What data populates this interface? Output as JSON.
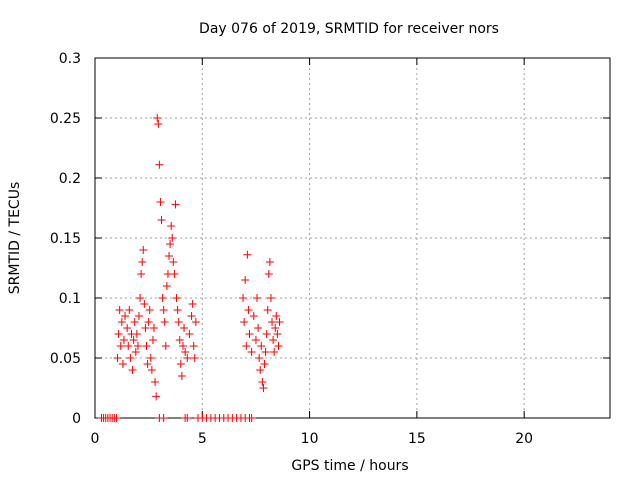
{
  "chart_data": {
    "type": "scatter",
    "title": "Day 076 of 2019, SRMTID for receiver nors",
    "xlabel": "GPS time / hours",
    "ylabel": "SRMTID / TECUs",
    "xlim": [
      0,
      24
    ],
    "ylim": [
      0,
      0.3
    ],
    "x_ticks": [
      0,
      5,
      10,
      15,
      20
    ],
    "x_tick_labels": [
      "0",
      "5",
      "10",
      "15",
      "20"
    ],
    "y_ticks": [
      0,
      0.05,
      0.1,
      0.15,
      0.2,
      0.25,
      0.3
    ],
    "y_tick_labels": [
      "0",
      "0.05",
      "0.1",
      "0.15",
      "0.2",
      "0.25",
      "0.3"
    ],
    "grid": true,
    "marker": "+",
    "series": [
      {
        "color": "#ff0000",
        "points": [
          [
            0.3,
            0
          ],
          [
            0.4,
            0
          ],
          [
            0.5,
            0
          ],
          [
            0.6,
            0
          ],
          [
            0.7,
            0
          ],
          [
            0.8,
            0
          ],
          [
            0.9,
            0
          ],
          [
            1.0,
            0
          ],
          [
            1.05,
            0.05
          ],
          [
            1.1,
            0.07
          ],
          [
            1.15,
            0.09
          ],
          [
            1.2,
            0.06
          ],
          [
            1.25,
            0.08
          ],
          [
            1.3,
            0.045
          ],
          [
            1.35,
            0.065
          ],
          [
            1.4,
            0.085
          ],
          [
            1.5,
            0.075
          ],
          [
            1.55,
            0.06
          ],
          [
            1.6,
            0.09
          ],
          [
            1.65,
            0.05
          ],
          [
            1.7,
            0.07
          ],
          [
            1.75,
            0.04
          ],
          [
            1.8,
            0.065
          ],
          [
            1.85,
            0.08
          ],
          [
            1.9,
            0.055
          ],
          [
            1.95,
            0.07
          ],
          [
            2.0,
            0.06
          ],
          [
            2.05,
            0.085
          ],
          [
            2.1,
            0.1
          ],
          [
            2.15,
            0.12
          ],
          [
            2.2,
            0.13
          ],
          [
            2.25,
            0.14
          ],
          [
            2.3,
            0.095
          ],
          [
            2.35,
            0.075
          ],
          [
            2.4,
            0.06
          ],
          [
            2.45,
            0.045
          ],
          [
            2.5,
            0.08
          ],
          [
            2.55,
            0.09
          ],
          [
            2.6,
            0.05
          ],
          [
            2.65,
            0.04
          ],
          [
            2.7,
            0.065
          ],
          [
            2.75,
            0.075
          ],
          [
            2.8,
            0.03
          ],
          [
            2.85,
            0.018
          ],
          [
            2.9,
            0.25
          ],
          [
            2.95,
            0.245
          ],
          [
            3.0,
            0.211
          ],
          [
            3.05,
            0.18
          ],
          [
            3.1,
            0.165
          ],
          [
            3.15,
            0.1
          ],
          [
            3.2,
            0.09
          ],
          [
            3.25,
            0.08
          ],
          [
            3.3,
            0.06
          ],
          [
            3.35,
            0.11
          ],
          [
            3.4,
            0.12
          ],
          [
            3.45,
            0.135
          ],
          [
            3.5,
            0.145
          ],
          [
            3.55,
            0.16
          ],
          [
            3.6,
            0.15
          ],
          [
            3.65,
            0.13
          ],
          [
            3.7,
            0.12
          ],
          [
            3.75,
            0.178
          ],
          [
            3.8,
            0.1
          ],
          [
            3.85,
            0.09
          ],
          [
            3.9,
            0.08
          ],
          [
            3.95,
            0.065
          ],
          [
            4.0,
            0.045
          ],
          [
            4.05,
            0.035
          ],
          [
            4.1,
            0.06
          ],
          [
            4.15,
            0.075
          ],
          [
            4.2,
            0.055
          ],
          [
            4.3,
            0.05
          ],
          [
            4.4,
            0.07
          ],
          [
            4.5,
            0.085
          ],
          [
            4.55,
            0.095
          ],
          [
            4.6,
            0.06
          ],
          [
            4.65,
            0.05
          ],
          [
            4.7,
            0.08
          ],
          [
            4.2,
            0
          ],
          [
            4.3,
            0
          ],
          [
            3.0,
            0
          ],
          [
            3.2,
            0
          ],
          [
            4.8,
            0
          ],
          [
            5.0,
            0
          ],
          [
            5.2,
            0
          ],
          [
            5.4,
            0
          ],
          [
            5.6,
            0
          ],
          [
            5.8,
            0
          ],
          [
            6.0,
            0
          ],
          [
            6.2,
            0
          ],
          [
            6.4,
            0
          ],
          [
            6.6,
            0
          ],
          [
            6.8,
            0
          ],
          [
            7.0,
            0
          ],
          [
            7.2,
            0
          ],
          [
            7.3,
            0
          ],
          [
            6.9,
            0.1
          ],
          [
            6.95,
            0.08
          ],
          [
            7.0,
            0.115
          ],
          [
            7.05,
            0.06
          ],
          [
            7.1,
            0.136
          ],
          [
            7.15,
            0.09
          ],
          [
            7.2,
            0.07
          ],
          [
            7.3,
            0.055
          ],
          [
            7.4,
            0.085
          ],
          [
            7.5,
            0.065
          ],
          [
            7.55,
            0.1
          ],
          [
            7.6,
            0.075
          ],
          [
            7.65,
            0.05
          ],
          [
            7.7,
            0.04
          ],
          [
            7.75,
            0.06
          ],
          [
            7.8,
            0.03
          ],
          [
            7.85,
            0.025
          ],
          [
            7.9,
            0.045
          ],
          [
            7.95,
            0.055
          ],
          [
            8.0,
            0.07
          ],
          [
            8.05,
            0.09
          ],
          [
            8.1,
            0.12
          ],
          [
            8.15,
            0.13
          ],
          [
            8.2,
            0.1
          ],
          [
            8.25,
            0.08
          ],
          [
            8.3,
            0.065
          ],
          [
            8.35,
            0.055
          ],
          [
            8.4,
            0.075
          ],
          [
            8.45,
            0.085
          ],
          [
            8.5,
            0.07
          ],
          [
            8.55,
            0.06
          ],
          [
            8.6,
            0.08
          ]
        ]
      }
    ]
  }
}
